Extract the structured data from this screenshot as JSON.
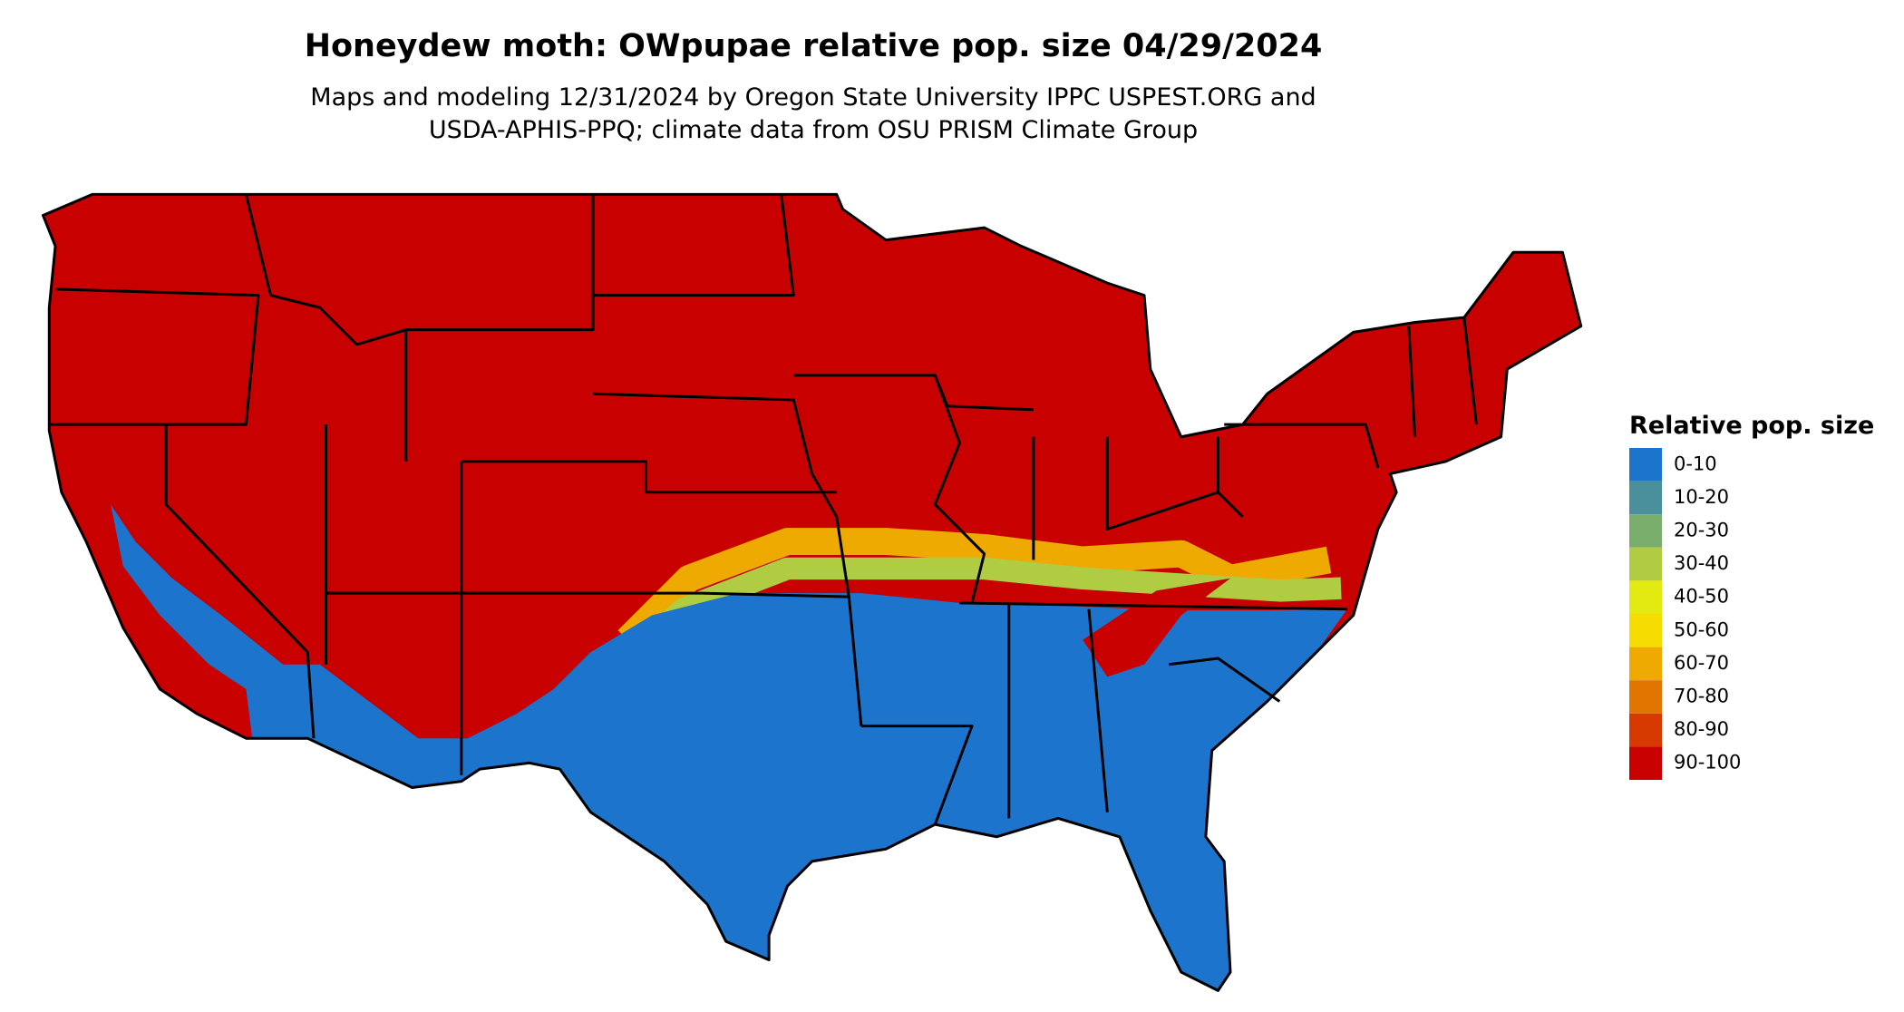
{
  "title": "Honeydew moth: OWpupae relative pop. size 04/29/2024",
  "subtitle": [
    "Maps and modeling 12/31/2024 by Oregon State University IPPC USPEST.ORG and",
    "USDA-APHIS-PPQ; climate data from OSU PRISM Climate Group"
  ],
  "legend": {
    "title": "Relative pop. size",
    "items": [
      {
        "label": "0-10",
        "color": "#1c74cc"
      },
      {
        "label": "10-20",
        "color": "#4a8f9c"
      },
      {
        "label": "20-30",
        "color": "#78ad6c"
      },
      {
        "label": "30-40",
        "color": "#b0cc42"
      },
      {
        "label": "40-50",
        "color": "#e2ea12"
      },
      {
        "label": "50-60",
        "color": "#f7dc00"
      },
      {
        "label": "60-70",
        "color": "#eeaa00"
      },
      {
        "label": "70-80",
        "color": "#e27400"
      },
      {
        "label": "80-90",
        "color": "#d63a00"
      },
      {
        "label": "90-100",
        "color": "#c80000"
      }
    ]
  }
}
